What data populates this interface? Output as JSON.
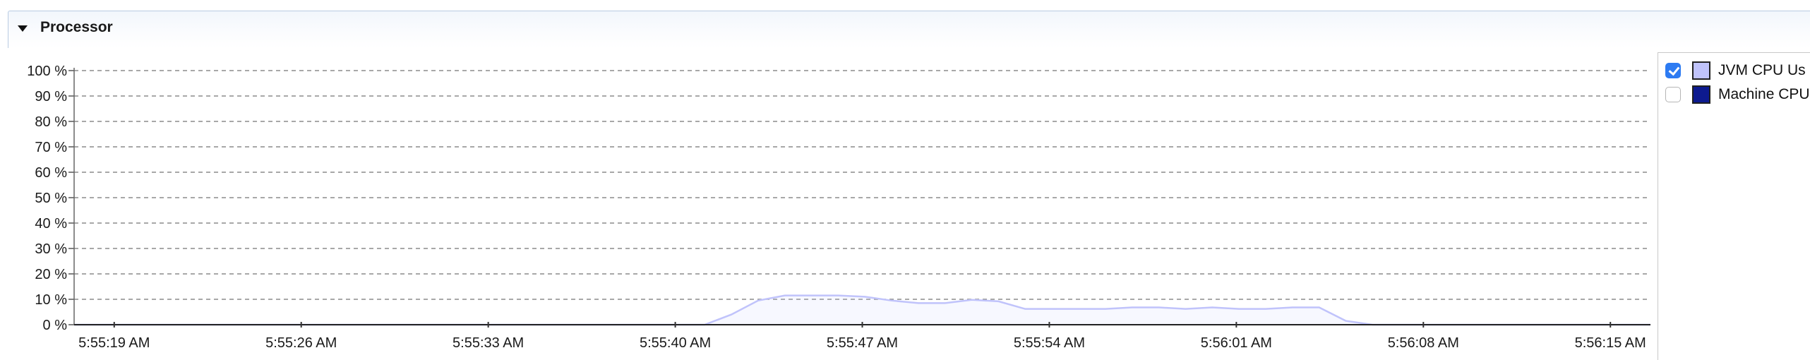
{
  "section": {
    "title": "Processor",
    "expanded": true
  },
  "legend": {
    "items": [
      {
        "label": "JVM CPU Us",
        "checked": true,
        "color": "#c0c3fb"
      },
      {
        "label": "Machine CPU",
        "checked": false,
        "color": "#0d1a8f"
      }
    ]
  },
  "chart_data": {
    "type": "area",
    "title": "",
    "xlabel": "",
    "ylabel": "",
    "y_ticks": [
      "0 %",
      "10 %",
      "20 %",
      "30 %",
      "40 %",
      "50 %",
      "60 %",
      "70 %",
      "80 %",
      "90 %",
      "100 %"
    ],
    "ylim": [
      0,
      100
    ],
    "grid": true,
    "x_ticks": [
      "5:55:19 AM",
      "5:55:26 AM",
      "5:55:33 AM",
      "5:55:40 AM",
      "5:55:47 AM",
      "5:55:54 AM",
      "5:56:01 AM",
      "5:56:08 AM",
      "5:56:15 AM"
    ],
    "x_tick_seconds": [
      0,
      7,
      14,
      21,
      28,
      35,
      42,
      49,
      56
    ],
    "x_range_seconds": [
      -1.5,
      57.5
    ],
    "series": [
      {
        "name": "JVM CPU Usage",
        "color": "#c0c3fb",
        "visible": true,
        "points": [
          [
            -1.5,
            0
          ],
          [
            22.1,
            0
          ],
          [
            23.1,
            4
          ],
          [
            24.1,
            9.5
          ],
          [
            25.1,
            11.5
          ],
          [
            26.1,
            11.5
          ],
          [
            27.1,
            11.5
          ],
          [
            28.1,
            11
          ],
          [
            29.1,
            9.5
          ],
          [
            30.1,
            8.5
          ],
          [
            31.1,
            8.5
          ],
          [
            32.1,
            9.8
          ],
          [
            33.1,
            9.2
          ],
          [
            34.1,
            6.2
          ],
          [
            35.1,
            6.2
          ],
          [
            36.1,
            6.2
          ],
          [
            37.1,
            6.2
          ],
          [
            38.1,
            6.8
          ],
          [
            39.1,
            6.8
          ],
          [
            40.1,
            6.2
          ],
          [
            41.1,
            6.8
          ],
          [
            42.1,
            6.2
          ],
          [
            43.1,
            6.2
          ],
          [
            44.1,
            6.8
          ],
          [
            45.1,
            6.8
          ],
          [
            46.1,
            1.5
          ],
          [
            47.1,
            0
          ],
          [
            57.5,
            0
          ]
        ]
      },
      {
        "name": "Machine CPU Usage",
        "color": "#0d1a8f",
        "visible": false,
        "points": [
          [
            -1.5,
            0
          ],
          [
            6.0,
            0
          ],
          [
            7.0,
            0.5
          ],
          [
            8.0,
            0.5
          ],
          [
            9.0,
            0
          ],
          [
            57.5,
            0
          ]
        ]
      }
    ]
  }
}
